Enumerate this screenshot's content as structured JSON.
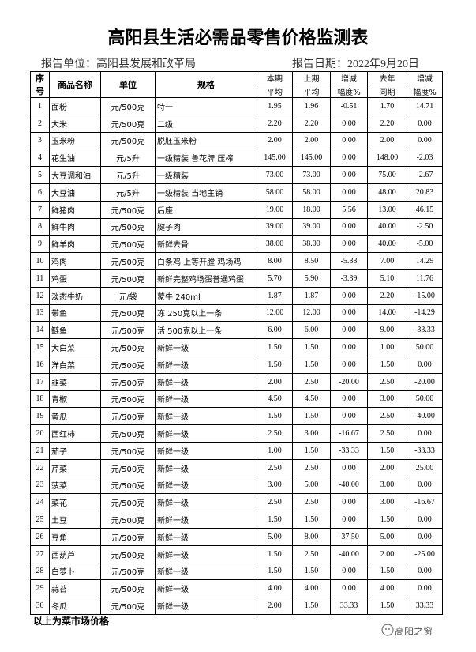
{
  "header": {
    "title": "高阳县生活必需品零售价格监测表",
    "unit": "报告单位：高阳县发展和改革局",
    "date": "报告日期：2022年9月20日"
  },
  "table": {
    "head_top": [
      "序号",
      "商品名称",
      "单位",
      "规格",
      "本期",
      "上期",
      "增减",
      "去年",
      "增减"
    ],
    "head_bottom": [
      "平均",
      "平均",
      "幅度%",
      "同期",
      "幅度%"
    ],
    "rows": [
      [
        "1",
        "面粉",
        "元/500克",
        "特一",
        "1.95",
        "1.96",
        "-0.51",
        "1.70",
        "14.71"
      ],
      [
        "2",
        "大米",
        "元/500克",
        "二级",
        "2.20",
        "2.20",
        "0.00",
        "2.20",
        "0.00"
      ],
      [
        "3",
        "玉米粉",
        "元/500克",
        "脱胚玉米粉",
        "2.00",
        "2.00",
        "0.00",
        "2.00",
        "0.00"
      ],
      [
        "4",
        "花生油",
        "元/5升",
        "一级精装 鲁花牌 压榨",
        "145.00",
        "145.00",
        "0.00",
        "148.00",
        "-2.03"
      ],
      [
        "5",
        "大豆调和油",
        "元/5升",
        "一级精装",
        "73.00",
        "73.00",
        "0.00",
        "75.00",
        "-2.67"
      ],
      [
        "6",
        "大豆油",
        "元/5升",
        "一级精装 当地主销",
        "58.00",
        "58.00",
        "0.00",
        "48.00",
        "20.83"
      ],
      [
        "7",
        "鲜猪肉",
        "元/500克",
        "后座",
        "19.00",
        "18.00",
        "5.56",
        "13.00",
        "46.15"
      ],
      [
        "8",
        "鲜牛肉",
        "元/500克",
        "腱子肉",
        "39.00",
        "39.00",
        "0.00",
        "40.00",
        "-2.50"
      ],
      [
        "9",
        "鲜羊肉",
        "元/500克",
        "新鲜去骨",
        "38.00",
        "38.00",
        "0.00",
        "40.00",
        "-5.00"
      ],
      [
        "10",
        "鸡肉",
        "元/500克",
        "白条鸡 上等开膛 鸡场鸡",
        "8.00",
        "8.50",
        "-5.88",
        "7.00",
        "14.29"
      ],
      [
        "11",
        "鸡蛋",
        "元/500克",
        "新鲜完整鸡场蛋普通鸡蛋",
        "5.70",
        "5.90",
        "-3.39",
        "5.10",
        "11.76"
      ],
      [
        "12",
        "淡态牛奶",
        "元/袋",
        "蒙牛 240ml",
        "1.87",
        "1.87",
        "0.00",
        "2.20",
        "-15.00"
      ],
      [
        "13",
        "带鱼",
        "元/500克",
        "冻 250克以上一条",
        "12.00",
        "12.00",
        "0.00",
        "14.00",
        "-14.29"
      ],
      [
        "14",
        "鲢鱼",
        "元/500克",
        "活 500克以上一条",
        "6.00",
        "6.00",
        "0.00",
        "9.00",
        "-33.33"
      ],
      [
        "15",
        "大白菜",
        "元/500克",
        "新鲜一级",
        "1.50",
        "1.50",
        "0.00",
        "1.00",
        "50.00"
      ],
      [
        "16",
        "洋白菜",
        "元/500克",
        "新鲜一级",
        "1.50",
        "1.50",
        "0.00",
        "1.50",
        "0.00"
      ],
      [
        "17",
        "韭菜",
        "元/500克",
        "新鲜一级",
        "2.00",
        "2.50",
        "-20.00",
        "2.50",
        "-20.00"
      ],
      [
        "18",
        "青椒",
        "元/500克",
        "新鲜一级",
        "4.50",
        "4.50",
        "0.00",
        "3.00",
        "50.00"
      ],
      [
        "19",
        "黄瓜",
        "元/500克",
        "新鲜一级",
        "1.50",
        "1.50",
        "0.00",
        "2.50",
        "-40.00"
      ],
      [
        "20",
        "西红柿",
        "元/500克",
        "新鲜一级",
        "2.50",
        "3.00",
        "-16.67",
        "2.50",
        "0.00"
      ],
      [
        "21",
        "茄子",
        "元/500克",
        "新鲜一级",
        "1.00",
        "1.50",
        "-33.33",
        "1.50",
        "-33.33"
      ],
      [
        "22",
        "芹菜",
        "元/500克",
        "新鲜一级",
        "2.50",
        "2.50",
        "0.00",
        "2.00",
        "25.00"
      ],
      [
        "23",
        "菠菜",
        "元/500克",
        "新鲜一级",
        "3.00",
        "5.00",
        "-40.00",
        "3.00",
        "0.00"
      ],
      [
        "24",
        "菜花",
        "元/500克",
        "新鲜一级",
        "2.50",
        "2.50",
        "0.00",
        "3.00",
        "-16.67"
      ],
      [
        "25",
        "土豆",
        "元/500克",
        "新鲜一级",
        "1.50",
        "1.50",
        "0.00",
        "1.50",
        "0.00"
      ],
      [
        "26",
        "豆角",
        "元/500克",
        "新鲜一级",
        "5.00",
        "8.00",
        "-37.50",
        "5.00",
        "0.00"
      ],
      [
        "27",
        "西葫芦",
        "元/500克",
        "新鲜一级",
        "1.50",
        "2.50",
        "-40.00",
        "2.00",
        "-25.00"
      ],
      [
        "28",
        "白萝卜",
        "元/500克",
        "新鲜一级",
        "1.50",
        "1.50",
        "0.00",
        "1.50",
        "0.00"
      ],
      [
        "29",
        "蒜苔",
        "元/500克",
        "新鲜一级",
        "4.00",
        "4.00",
        "0.00",
        "4.00",
        "0.00"
      ],
      [
        "30",
        "冬瓜",
        "元/500克",
        "新鲜一级",
        "2.00",
        "1.50",
        "33.33",
        "1.50",
        "33.33"
      ]
    ]
  },
  "footer": {
    "note": "以上为菜市场价格",
    "watermark": "高阳之窗"
  }
}
